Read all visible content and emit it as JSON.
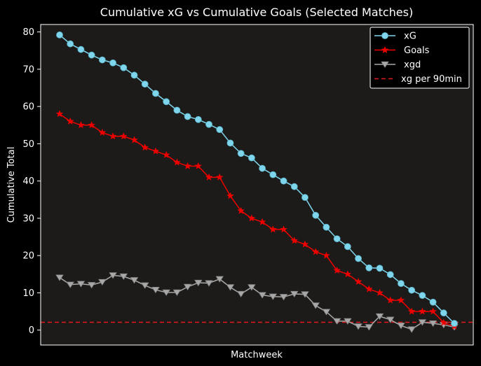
{
  "chart_data": {
    "type": "line",
    "title": "Cumulative xG vs Cumulative Goals (Selected Matches)",
    "xlabel": "Matchweek",
    "ylabel": "Cumulative Total",
    "ylim": [
      -4,
      82
    ],
    "yticks": [
      0,
      10,
      20,
      30,
      40,
      50,
      60,
      70,
      80
    ],
    "grid": false,
    "legend_position": "top-right",
    "background": "#1c1b1a",
    "series": [
      {
        "name": "xG",
        "color": "#7fd6ec",
        "marker": "circle",
        "values": [
          79.2,
          76.8,
          75.3,
          73.8,
          72.5,
          71.7,
          70.4,
          68.4,
          66.0,
          63.5,
          61.3,
          59.0,
          57.3,
          56.5,
          55.2,
          53.8,
          50.2,
          47.4,
          46.2,
          43.4,
          41.7,
          40.0,
          38.5,
          35.6,
          30.8,
          27.6,
          24.5,
          22.4,
          19.2,
          16.7,
          16.6,
          14.9,
          12.5,
          10.7,
          9.3,
          7.5,
          4.6,
          1.8
        ]
      },
      {
        "name": "Goals",
        "color": "#ee0000",
        "marker": "star",
        "values": [
          58,
          56,
          55,
          55,
          53,
          52,
          52,
          51,
          49,
          48,
          47,
          45,
          44,
          44,
          41,
          41,
          36,
          32,
          30,
          29,
          27,
          27,
          24,
          23,
          21,
          20,
          16,
          15,
          13,
          11,
          10,
          8,
          8,
          5,
          5,
          5,
          2,
          1
        ]
      },
      {
        "name": "xgd",
        "color": "#a8a8a8",
        "marker": "triangle-down",
        "values": [
          14.1,
          12.2,
          12.4,
          12.1,
          12.9,
          14.7,
          14.4,
          13.4,
          12.0,
          10.8,
          10.1,
          10.1,
          11.6,
          12.7,
          12.6,
          13.7,
          11.5,
          9.7,
          11.5,
          9.4,
          9.0,
          8.9,
          9.7,
          9.6,
          6.6,
          4.9,
          2.4,
          2.4,
          1.0,
          0.8,
          3.7,
          2.8,
          1.2,
          0.2,
          2.1,
          1.8,
          1.4,
          0.8
        ]
      }
    ],
    "hlines": [
      {
        "name": "xg per 90min",
        "y": 2.1,
        "color": "#e0191f",
        "style": "dashed"
      }
    ]
  }
}
